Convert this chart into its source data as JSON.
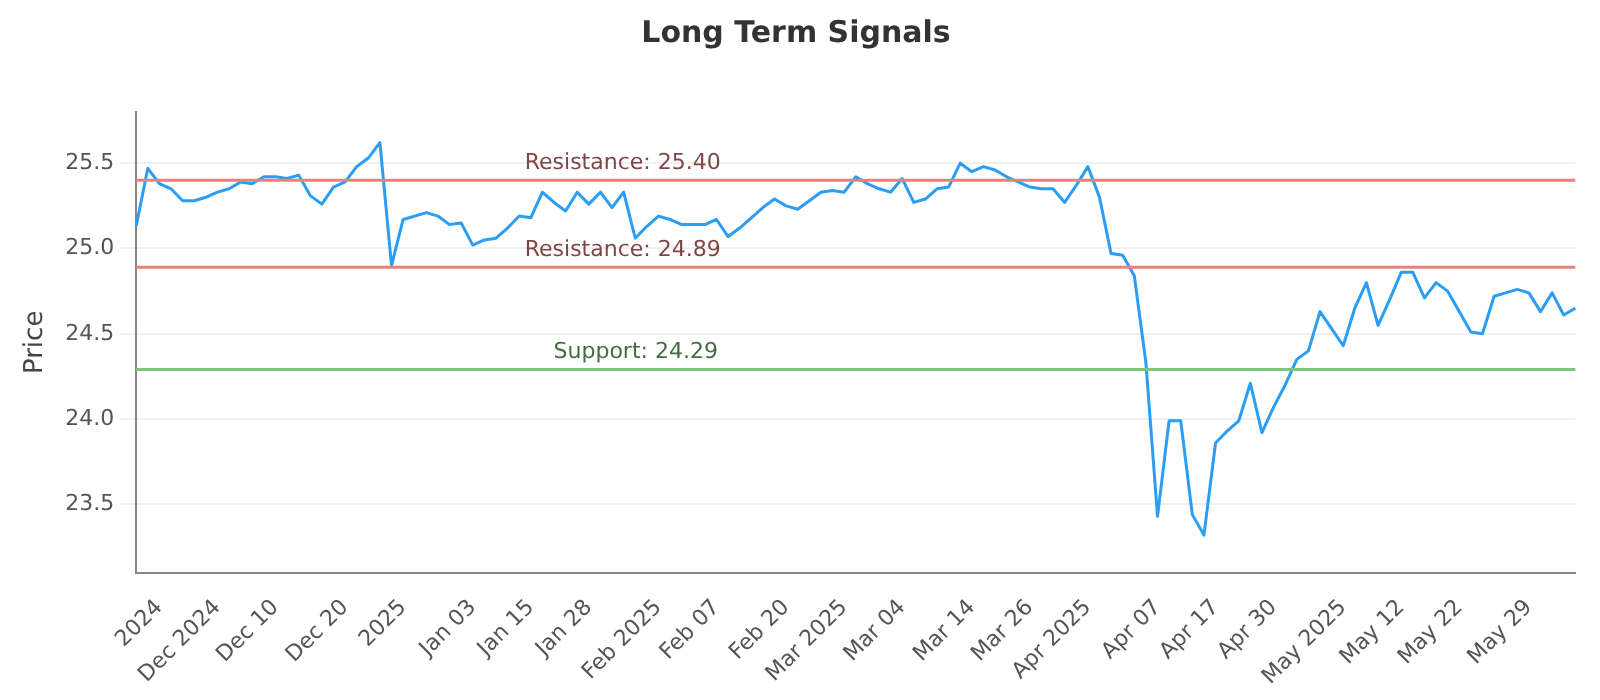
{
  "chart_data": {
    "type": "line",
    "title": "Long Term Signals",
    "ylabel": "Price",
    "categories": [
      null,
      null,
      "2024",
      null,
      null,
      null,
      null,
      "Dec 2024",
      null,
      null,
      null,
      null,
      "Dec 10",
      null,
      null,
      null,
      null,
      null,
      "Dec 20",
      null,
      null,
      null,
      null,
      "2025",
      null,
      null,
      null,
      null,
      null,
      "Jan 03",
      null,
      null,
      null,
      null,
      "Jan 15",
      null,
      null,
      null,
      null,
      "Jan 28",
      null,
      null,
      null,
      null,
      null,
      "Feb 2025",
      null,
      null,
      null,
      null,
      "Feb 07",
      null,
      null,
      null,
      null,
      null,
      "Feb 20",
      null,
      null,
      null,
      null,
      "Mar 2025",
      null,
      null,
      null,
      null,
      "Mar 04",
      null,
      null,
      null,
      null,
      null,
      "Mar 14",
      null,
      null,
      null,
      null,
      "Mar 26",
      null,
      null,
      null,
      null,
      "Apr 2025",
      null,
      null,
      null,
      null,
      null,
      "Apr 07",
      null,
      null,
      null,
      null,
      "Apr 17",
      null,
      null,
      null,
      null,
      "Apr 30",
      null,
      null,
      null,
      null,
      null,
      "May 2025",
      null,
      null,
      null,
      null,
      "May 12",
      null,
      null,
      null,
      null,
      "May 22",
      null,
      null,
      null,
      null,
      null,
      "May 29",
      null,
      null,
      null,
      null
    ],
    "series": [
      {
        "color": "#2a9df4",
        "values": [
          25.13,
          25.47,
          25.38,
          25.35,
          25.28,
          25.28,
          25.3,
          25.33,
          25.35,
          25.39,
          25.38,
          25.42,
          25.42,
          25.41,
          25.43,
          25.31,
          25.26,
          25.36,
          25.39,
          25.48,
          25.53,
          25.62,
          24.9,
          25.17,
          25.19,
          25.21,
          25.19,
          25.14,
          25.15,
          25.02,
          25.05,
          25.06,
          25.12,
          25.19,
          25.18,
          25.33,
          25.27,
          25.22,
          25.33,
          25.26,
          25.33,
          25.24,
          25.33,
          25.06,
          25.13,
          25.19,
          25.17,
          25.14,
          25.14,
          25.14,
          25.17,
          25.07,
          25.12,
          25.18,
          25.24,
          25.29,
          25.25,
          25.23,
          25.28,
          25.33,
          25.34,
          25.33,
          25.42,
          25.38,
          25.35,
          25.33,
          25.41,
          25.27,
          25.29,
          25.35,
          25.36,
          25.5,
          25.45,
          25.48,
          25.46,
          25.42,
          25.39,
          25.36,
          25.35,
          25.35,
          25.27,
          25.37,
          25.48,
          25.3,
          24.97,
          24.96,
          24.84,
          24.33,
          23.43,
          23.99,
          23.99,
          23.44,
          23.32,
          23.86,
          23.93,
          23.99,
          24.21,
          23.92,
          24.07,
          24.2,
          24.35,
          24.4,
          24.63,
          24.53,
          24.43,
          24.65,
          24.8,
          24.55,
          24.7,
          24.86,
          24.86,
          24.71,
          24.8,
          24.75,
          24.63,
          24.51,
          24.5,
          24.72,
          24.74,
          24.76,
          24.74,
          24.63,
          24.74,
          24.61,
          24.65
        ]
      }
    ],
    "ylim": [
      23.1,
      25.8
    ],
    "yticks": [
      23.5,
      {
        "value": 24,
        "label": "24.0"
      },
      24.5,
      {
        "value": 25,
        "label": "25.0"
      },
      25.5
    ],
    "ref_lines": [
      {
        "axis": "y",
        "value": 25.4,
        "label": "Resistance: 25.40",
        "color": "#e88080"
      },
      {
        "axis": "y",
        "value": 24.89,
        "label": "Resistance: 24.89",
        "color": "#e88080"
      },
      {
        "axis": "y",
        "value": 24.29,
        "label": "Support: 24.29",
        "color": "#7cc67c"
      }
    ],
    "grid": "y",
    "marker": "none",
    "line_style": "solid",
    "legend": false
  }
}
